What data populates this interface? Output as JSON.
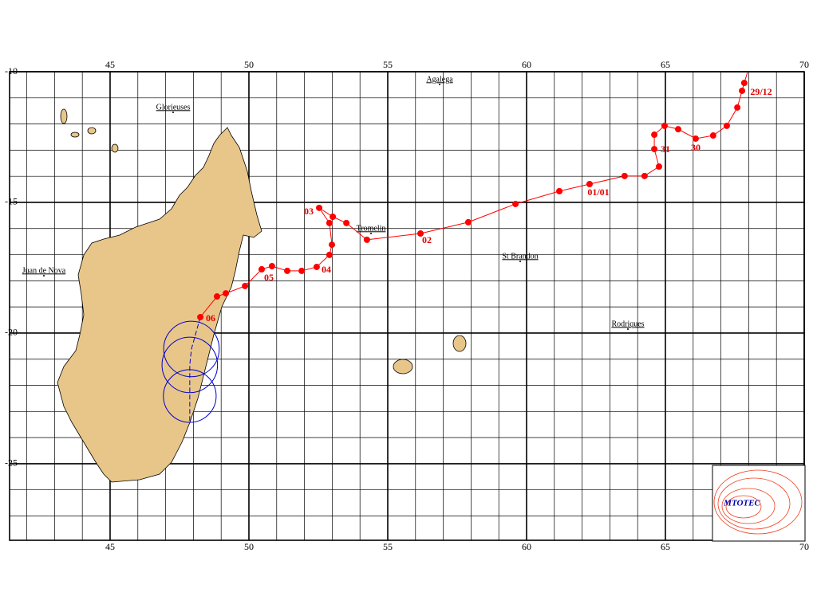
{
  "chart_data": {
    "type": "track-map",
    "xlim": [
      41.38,
      70
    ],
    "ylim": [
      -27.93,
      -10
    ],
    "xticks": [
      45,
      50,
      55,
      60,
      65,
      70
    ],
    "yticks": [
      -10,
      -15,
      -20,
      -25
    ],
    "grid": true,
    "places": [
      "Agalega",
      "Glorieuses",
      "Tromelin",
      "St Brandon",
      "Juan de Nova",
      "Rodriques"
    ],
    "date_labels": [
      "29/12",
      "30",
      "31",
      "01/01",
      "02",
      "03",
      "04",
      "05",
      "06"
    ],
    "logo": "MTOTEC",
    "track": {
      "color": "#ff0000",
      "lon": [
        67.96,
        67.84,
        67.76,
        67.59,
        67.21,
        66.72,
        66.09,
        65.46,
        64.97,
        64.6,
        64.6,
        64.77,
        64.25,
        63.53,
        62.27,
        61.18,
        59.6,
        57.9,
        56.18,
        54.25,
        53.51,
        53.02,
        52.53,
        52.9,
        52.99,
        52.9,
        52.44,
        51.9,
        51.38,
        50.83,
        50.46,
        49.86,
        49.17,
        48.85,
        48.25
      ],
      "lat": [
        -10.0,
        -10.43,
        -10.73,
        -11.37,
        -12.07,
        -12.44,
        -12.56,
        -12.2,
        -12.07,
        -12.41,
        -12.96,
        -13.63,
        -13.99,
        -13.99,
        -14.3,
        -14.57,
        -15.06,
        -15.76,
        -16.19,
        -16.43,
        -15.79,
        -15.55,
        -15.21,
        -15.79,
        -16.62,
        -17.01,
        -17.47,
        -17.62,
        -17.62,
        -17.44,
        -17.56,
        -18.2,
        -18.48,
        -18.6,
        -19.39
      ]
    },
    "forecast": {
      "color": "#0000cc",
      "lon": [
        47.93,
        47.87,
        47.87,
        47.87
      ],
      "lat": [
        -20.61,
        -21.22,
        -22.41,
        -23.41
      ],
      "radius_deg": [
        1,
        1,
        0.95,
        0
      ]
    }
  }
}
